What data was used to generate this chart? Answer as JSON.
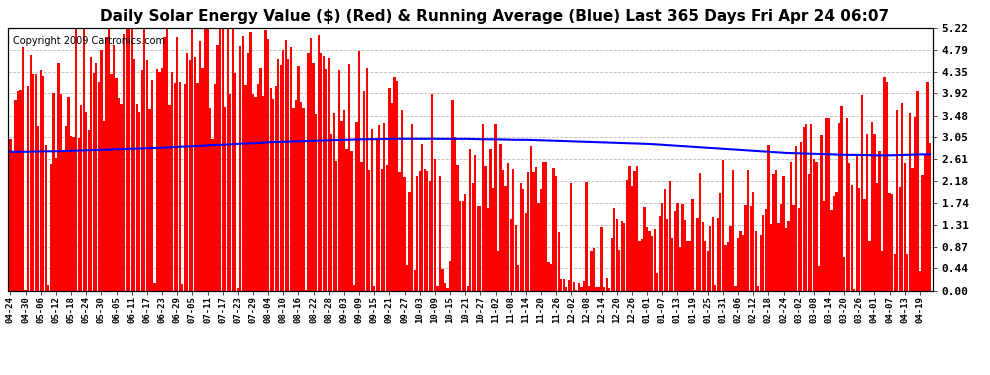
{
  "title": "Daily Solar Energy Value ($) (Red) & Running Average (Blue) Last 365 Days Fri Apr 24 06:07",
  "copyright": "Copyright 2009 Cartronics.com",
  "ylabel_right": [
    "5.22",
    "4.79",
    "4.35",
    "3.92",
    "3.48",
    "3.05",
    "2.61",
    "2.18",
    "1.74",
    "1.31",
    "0.87",
    "0.44",
    "0.00"
  ],
  "yticks": [
    5.22,
    4.79,
    4.35,
    3.92,
    3.48,
    3.05,
    2.61,
    2.18,
    1.74,
    1.31,
    0.87,
    0.44,
    0.0
  ],
  "ylim": [
    0.0,
    5.22
  ],
  "bar_color": "#FF0000",
  "avg_color": "#0000FF",
  "bg_color": "#FFFFFF",
  "grid_color": "#AAAAAA",
  "title_fontsize": 11,
  "copyright_fontsize": 7,
  "tick_interval": 6,
  "n_days": 365,
  "x_labels": [
    "04-24",
    "04-30",
    "05-06",
    "05-12",
    "05-18",
    "05-24",
    "05-30",
    "06-05",
    "06-11",
    "06-17",
    "06-23",
    "06-29",
    "07-05",
    "07-11",
    "07-17",
    "07-23",
    "07-29",
    "08-04",
    "08-10",
    "08-16",
    "08-22",
    "08-28",
    "09-03",
    "09-09",
    "09-15",
    "09-21",
    "09-27",
    "10-03",
    "10-09",
    "10-15",
    "10-21",
    "10-27",
    "11-02",
    "11-08",
    "11-14",
    "11-20",
    "11-26",
    "12-02",
    "12-08",
    "12-14",
    "12-20",
    "12-26",
    "01-01",
    "01-07",
    "01-13",
    "01-19",
    "01-25",
    "01-31",
    "02-06",
    "02-12",
    "02-18",
    "02-24",
    "03-02",
    "03-08",
    "03-14",
    "03-20",
    "03-26",
    "04-01",
    "04-07",
    "04-13",
    "04-19"
  ],
  "avg_line": [
    2.76,
    2.76,
    2.77,
    2.77,
    2.78,
    2.79,
    2.8,
    2.81,
    2.82,
    2.83,
    2.84,
    2.86,
    2.87,
    2.89,
    2.9,
    2.92,
    2.93,
    2.95,
    2.96,
    2.97,
    2.98,
    2.99,
    3.0,
    3.01,
    3.01,
    3.02,
    3.02,
    3.02,
    3.02,
    3.02,
    3.02,
    3.01,
    3.01,
    3.0,
    3.0,
    2.99,
    2.98,
    2.97,
    2.96,
    2.95,
    2.94,
    2.93,
    2.92,
    2.9,
    2.88,
    2.86,
    2.84,
    2.82,
    2.8,
    2.78,
    2.76,
    2.74,
    2.73,
    2.72,
    2.71,
    2.7,
    2.7,
    2.69,
    2.69,
    2.7,
    2.71
  ]
}
